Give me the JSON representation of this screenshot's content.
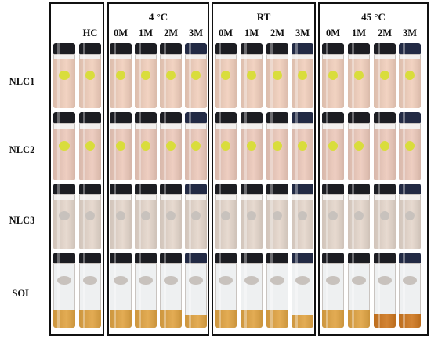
{
  "groups": [
    {
      "key": "hc",
      "label": "",
      "columns": [
        "HC"
      ]
    },
    {
      "key": "4c",
      "label": "4 °C",
      "columns": [
        "0M",
        "1M",
        "2M",
        "3M"
      ]
    },
    {
      "key": "rt",
      "label": "RT",
      "columns": [
        "0M",
        "1M",
        "2M",
        "3M"
      ]
    },
    {
      "key": "45c",
      "label": "45 °C",
      "columns": [
        "0M",
        "1M",
        "2M",
        "3M"
      ]
    }
  ],
  "rows": [
    "NLC1",
    "NLC2",
    "NLC3",
    "SOL"
  ],
  "colors": {
    "background": "#ffffff",
    "frame": "#111111",
    "nlc1_liquid": "#e8c9b8",
    "nlc2_liquid": "#e4c4b7",
    "nlc3_liquid": "#ddd0c6",
    "sol_liquid": "#d9a24a",
    "sol_liquid_45c_aged": "#c97a2a",
    "cap_black": "#1c1d22",
    "cap_navy": "#222a44",
    "tag_yellow": "#d9dd3c",
    "tag_grey": "#c8c2bd"
  }
}
